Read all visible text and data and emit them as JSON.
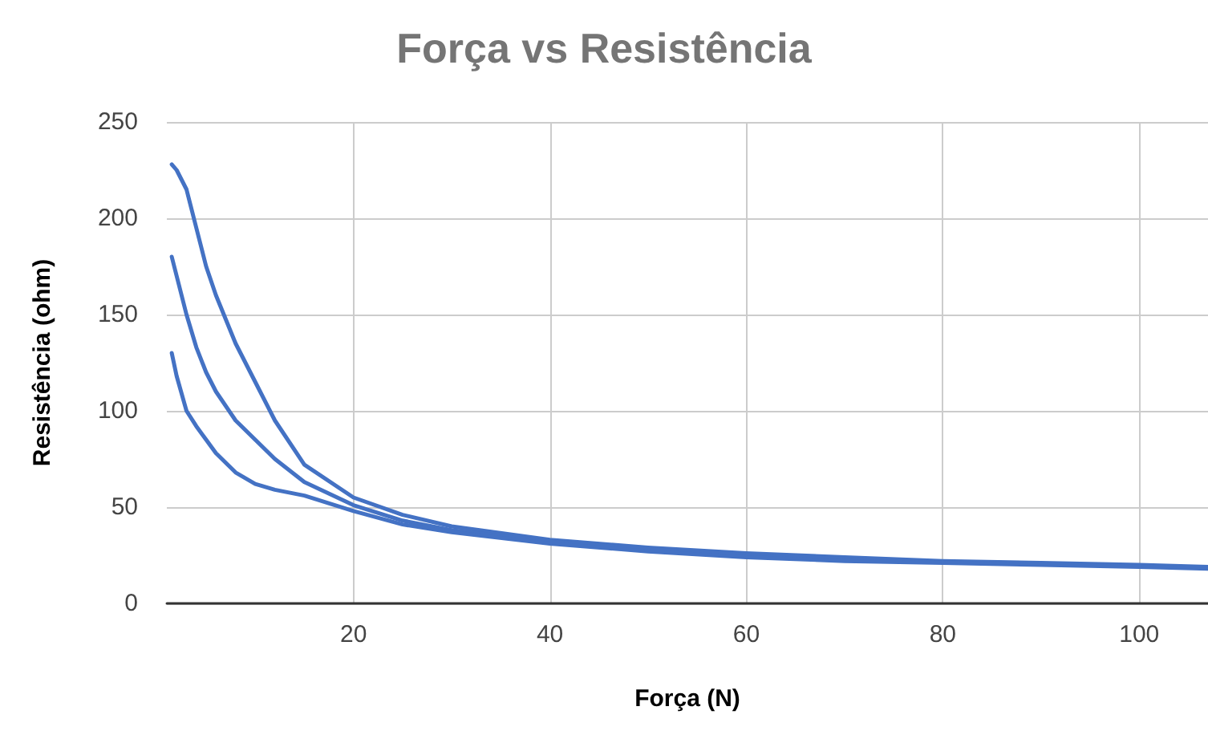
{
  "chart_data": {
    "type": "line",
    "title": "Força vs Resistência",
    "xlabel": "Força (N)",
    "ylabel": "Resistência (ohm)",
    "series": [
      {
        "color": "#4472c4",
        "x": [
          1.5,
          2,
          3,
          4,
          5,
          6,
          8,
          10,
          12,
          15,
          20,
          25,
          30,
          40,
          50,
          60,
          70,
          80,
          90,
          100,
          107
        ],
        "values": [
          228,
          225,
          215,
          195,
          175,
          160,
          135,
          115,
          95,
          72,
          55,
          46,
          40,
          33,
          29,
          26,
          24,
          22,
          21,
          20,
          19
        ]
      },
      {
        "color": "#4472c4",
        "x": [
          1.5,
          2,
          3,
          4,
          5,
          6,
          8,
          10,
          12,
          15,
          20,
          25,
          30,
          40,
          50,
          60,
          70,
          80,
          90,
          100,
          107
        ],
        "values": [
          180,
          170,
          150,
          133,
          120,
          110,
          95,
          85,
          75,
          63,
          51,
          43,
          38,
          32,
          28,
          25,
          23,
          21.5,
          20.5,
          19.5,
          18.5
        ]
      },
      {
        "color": "#4472c4",
        "x": [
          1.5,
          2,
          3,
          4,
          5,
          6,
          8,
          10,
          12,
          15,
          20,
          25,
          30,
          40,
          50,
          60,
          70,
          80,
          90,
          100,
          107
        ],
        "values": [
          130,
          118,
          100,
          92,
          85,
          78,
          68,
          62,
          59,
          56,
          48,
          41,
          37,
          31,
          27,
          24,
          22,
          21,
          20,
          19,
          18
        ]
      }
    ],
    "xlim": [
      1,
      107
    ],
    "xticks": [
      20,
      40,
      60,
      80,
      100
    ],
    "ylim": [
      0,
      250
    ],
    "yticks": [
      0,
      50,
      100,
      150,
      200,
      250
    ],
    "grid": true,
    "marker": "none",
    "line_style": "solid"
  }
}
